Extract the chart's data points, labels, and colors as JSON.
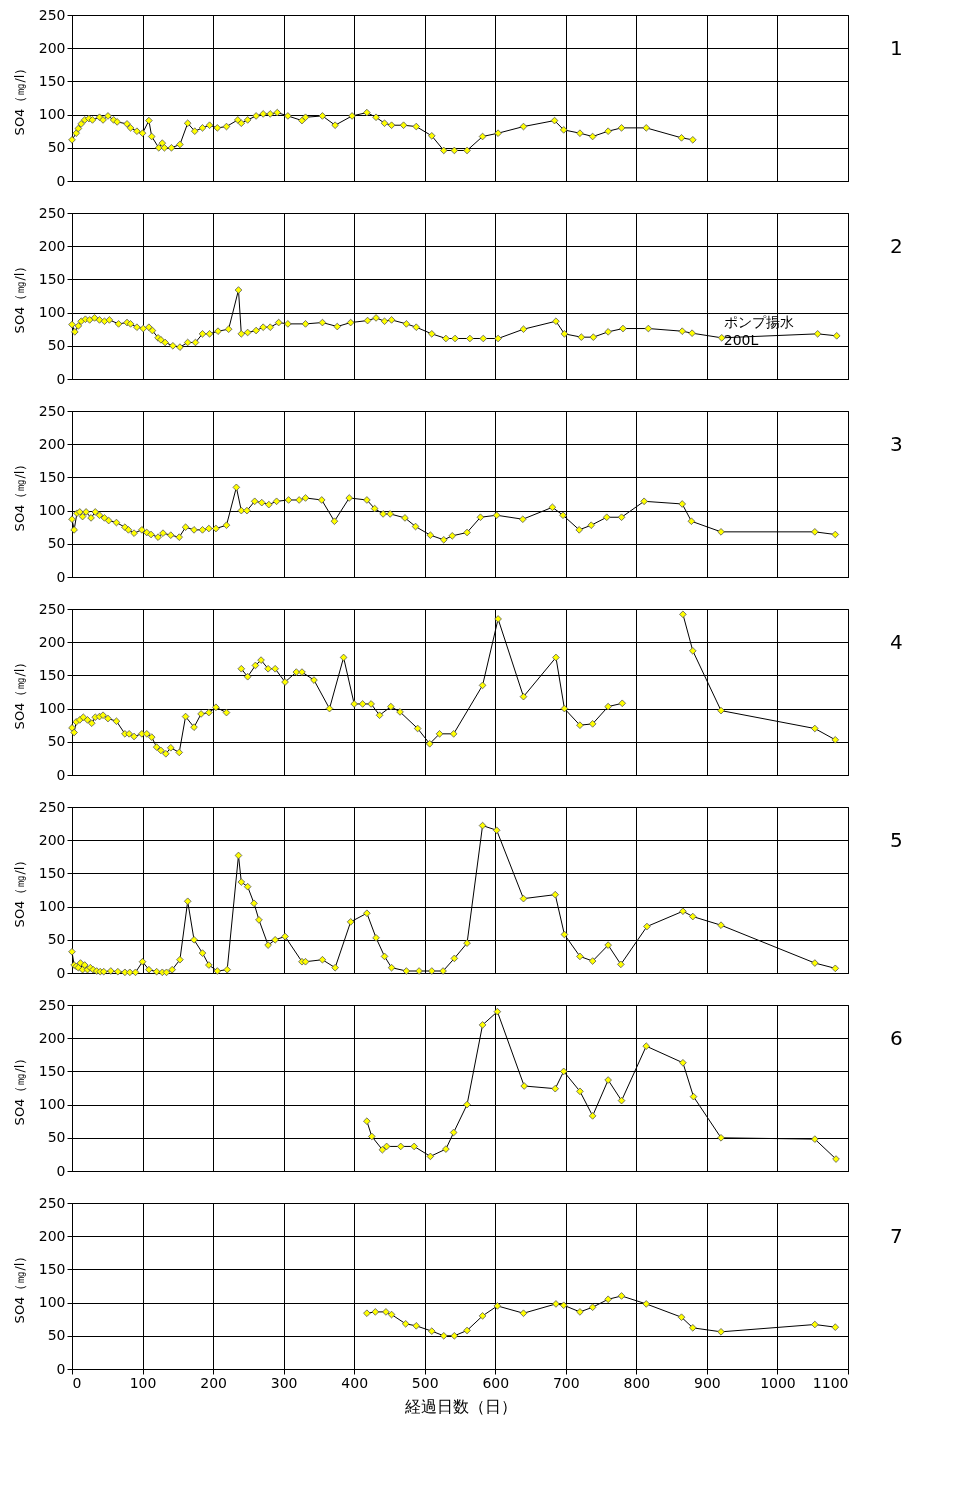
{
  "chart_data": [
    {
      "type": "line",
      "annotations": [
        "1"
      ],
      "ylabel": "SO4（㎎/l）",
      "xlim": [
        0,
        1100
      ],
      "xticks": [
        0,
        100,
        200,
        300,
        400,
        500,
        600,
        700,
        800,
        900,
        1000,
        1100
      ],
      "ylim": [
        0,
        250
      ],
      "yticks": [
        0,
        50,
        100,
        150,
        200,
        250
      ],
      "grid": true,
      "legend": false,
      "marker": "diamond",
      "line_style": "solid",
      "tick_labels": "y",
      "x": [
        0,
        6,
        9,
        13,
        18,
        24,
        29,
        39,
        44,
        51,
        59,
        64,
        78,
        83,
        92,
        100,
        109,
        113,
        123,
        128,
        131,
        141,
        153,
        164,
        174,
        185,
        195,
        206,
        219,
        235,
        240,
        249,
        261,
        271,
        281,
        291,
        306,
        326,
        331,
        355,
        373,
        397,
        418,
        431,
        443,
        453,
        470,
        488,
        510,
        527,
        542,
        560,
        582,
        604,
        640,
        684,
        697,
        720,
        738,
        760,
        779,
        814,
        864,
        880
      ],
      "series": [
        {
          "color": "#ffff00",
          "values": [
            62,
            72,
            79,
            86,
            92,
            94,
            92,
            96,
            92,
            98,
            92,
            89,
            86,
            80,
            75,
            72,
            91,
            67,
            50,
            57,
            50,
            50,
            55,
            87,
            75,
            80,
            84,
            80,
            82,
            92,
            87,
            92,
            98,
            101,
            101,
            103,
            98,
            91,
            96,
            98,
            84,
            98,
            103,
            96,
            87,
            84,
            84,
            82,
            68,
            46,
            46,
            46,
            67,
            72,
            82,
            91,
            77,
            72,
            67,
            75,
            80,
            80,
            65,
            62
          ]
        }
      ]
    },
    {
      "type": "line",
      "ylabel": "SO4（㎎/l）",
      "xlim": [
        0,
        1100
      ],
      "xticks": [
        0,
        100,
        200,
        300,
        400,
        500,
        600,
        700,
        800,
        900,
        1000,
        1100
      ],
      "ylim": [
        0,
        250
      ],
      "yticks": [
        0,
        50,
        100,
        150,
        200,
        250
      ],
      "grid": true,
      "legend": false,
      "marker": "diamond",
      "line_style": "solid",
      "tick_labels": "y",
      "annotations": [
        "2",
        {
          "text": "ポンプ揚水\n200L",
          "x": 921,
          "y": 62
        }
      ],
      "x": [
        0,
        4,
        9,
        13,
        19,
        25,
        32,
        39,
        46,
        53,
        66,
        78,
        83,
        92,
        101,
        109,
        114,
        122,
        126,
        132,
        143,
        153,
        164,
        175,
        185,
        195,
        207,
        222,
        236,
        240,
        249,
        261,
        271,
        281,
        293,
        306,
        331,
        355,
        376,
        395,
        419,
        431,
        443,
        453,
        474,
        488,
        510,
        530,
        543,
        564,
        583,
        604,
        640,
        686,
        698,
        722,
        739,
        760,
        781,
        817,
        865,
        879,
        921,
        1057,
        1084
      ],
      "series": [
        {
          "color": "#ffff00",
          "values": [
            82,
            71,
            80,
            87,
            90,
            89,
            92,
            89,
            87,
            89,
            83,
            85,
            83,
            78,
            76,
            78,
            73,
            62,
            59,
            55,
            50,
            48,
            55,
            55,
            68,
            68,
            72,
            75,
            134,
            68,
            70,
            73,
            78,
            78,
            85,
            83,
            83,
            85,
            79,
            85,
            88,
            92,
            87,
            89,
            83,
            78,
            68,
            61,
            61,
            61,
            61,
            61,
            75,
            87,
            68,
            63,
            63,
            71,
            76,
            76,
            72,
            69,
            62,
            68,
            65
          ]
        }
      ]
    },
    {
      "type": "line",
      "annotations": [
        "3"
      ],
      "ylabel": "SO4（㎎/l）",
      "xlim": [
        0,
        1100
      ],
      "xticks": [
        0,
        100,
        200,
        300,
        400,
        500,
        600,
        700,
        800,
        900,
        1000,
        1100
      ],
      "ylim": [
        0,
        250
      ],
      "yticks": [
        0,
        50,
        100,
        150,
        200,
        250
      ],
      "grid": true,
      "legend": false,
      "marker": "diamond",
      "line_style": "solid",
      "tick_labels": "y",
      "x": [
        0,
        3,
        7,
        11,
        15,
        20,
        27,
        33,
        39,
        46,
        52,
        63,
        75,
        80,
        88,
        99,
        106,
        112,
        122,
        129,
        140,
        152,
        161,
        173,
        185,
        194,
        204,
        219,
        233,
        240,
        248,
        259,
        269,
        279,
        290,
        307,
        322,
        331,
        354,
        372,
        393,
        418,
        429,
        441,
        451,
        472,
        487,
        508,
        527,
        539,
        560,
        579,
        602,
        639,
        681,
        696,
        719,
        736,
        758,
        779,
        811,
        865,
        878,
        920,
        1053,
        1082
      ],
      "series": [
        {
          "color": "#ffff00",
          "values": [
            87,
            71,
            96,
            98,
            91,
            98,
            89,
            98,
            93,
            89,
            85,
            82,
            75,
            71,
            66,
            71,
            67,
            64,
            60,
            66,
            63,
            60,
            75,
            71,
            71,
            73,
            73,
            78,
            135,
            100,
            100,
            114,
            112,
            109,
            114,
            116,
            116,
            119,
            116,
            84,
            119,
            116,
            103,
            95,
            95,
            89,
            76,
            63,
            56,
            62,
            67,
            90,
            93,
            87,
            105,
            93,
            71,
            78,
            90,
            90,
            114,
            110,
            84,
            68,
            68,
            64
          ]
        }
      ]
    },
    {
      "type": "line",
      "annotations": [
        "4"
      ],
      "ylabel": "SO4（㎎/l）",
      "xlim": [
        0,
        1100
      ],
      "xticks": [
        0,
        100,
        200,
        300,
        400,
        500,
        600,
        700,
        800,
        900,
        1000,
        1100
      ],
      "ylim": [
        0,
        250
      ],
      "yticks": [
        0,
        50,
        100,
        150,
        200,
        250
      ],
      "grid": true,
      "legend": false,
      "marker": "diamond",
      "line_style": "solid",
      "tick_labels": "y",
      "x": [
        0,
        3,
        6,
        11,
        16,
        22,
        28,
        33,
        39,
        44,
        51,
        63,
        75,
        81,
        88,
        99,
        106,
        113,
        120,
        126,
        133,
        140,
        152,
        161,
        173,
        183,
        194,
        204,
        219,
        234,
        240,
        249,
        260,
        268,
        278,
        288,
        302,
        318,
        326,
        343,
        365,
        385,
        400,
        412,
        424,
        436,
        452,
        465,
        490,
        507,
        521,
        541,
        582,
        604,
        640,
        686,
        698,
        720,
        738,
        760,
        780,
        815,
        866,
        880,
        920,
        1053,
        1082
      ],
      "series": [
        {
          "color": "#ffff00",
          "values": [
            71,
            64,
            80,
            83,
            87,
            83,
            78,
            87,
            88,
            90,
            85,
            81,
            62,
            62,
            58,
            62,
            62,
            57,
            42,
            37,
            32,
            41,
            34,
            88,
            72,
            92,
            94,
            102,
            94,
            null,
            160,
            148,
            165,
            173,
            160,
            160,
            140,
            155,
            155,
            143,
            100,
            177,
            107,
            107,
            107,
            90,
            103,
            95,
            70,
            47,
            62,
            62,
            135,
            235,
            118,
            177,
            100,
            75,
            77,
            103,
            108,
            null,
            242,
            187,
            97,
            70,
            53
          ]
        }
      ]
    },
    {
      "type": "line",
      "annotations": [
        "5"
      ],
      "ylabel": "SO4（㎎/l）",
      "xlim": [
        0,
        1100
      ],
      "xticks": [
        0,
        100,
        200,
        300,
        400,
        500,
        600,
        700,
        800,
        900,
        1000,
        1100
      ],
      "ylim": [
        0,
        250
      ],
      "yticks": [
        0,
        50,
        100,
        150,
        200,
        250
      ],
      "grid": true,
      "legend": false,
      "marker": "diamond",
      "line_style": "solid",
      "tick_labels": "y",
      "x": [
        0,
        3,
        6,
        9,
        12,
        15,
        18,
        22,
        26,
        30,
        35,
        40,
        45,
        55,
        65,
        75,
        82,
        90,
        100,
        109,
        120,
        128,
        134,
        142,
        153,
        164,
        173,
        185,
        194,
        206,
        220,
        236,
        240,
        249,
        258,
        265,
        278,
        288,
        302,
        326,
        331,
        355,
        373,
        395,
        418,
        431,
        443,
        453,
        474,
        492,
        510,
        526,
        542,
        560,
        582,
        602,
        640,
        685,
        698,
        720,
        738,
        760,
        778,
        815,
        866,
        880,
        920,
        1053,
        1082
      ],
      "series": [
        {
          "color": "#ffff00",
          "values": [
            32,
            12,
            10,
            8,
            15,
            5,
            12,
            5,
            8,
            5,
            3,
            2,
            2,
            3,
            2,
            1,
            1,
            1,
            17,
            5,
            2,
            1,
            1,
            5,
            20,
            108,
            50,
            30,
            12,
            3,
            5,
            177,
            137,
            130,
            105,
            80,
            42,
            50,
            55,
            17,
            17,
            20,
            8,
            77,
            90,
            53,
            25,
            8,
            3,
            3,
            3,
            3,
            22,
            45,
            222,
            215,
            112,
            118,
            58,
            25,
            18,
            42,
            13,
            70,
            93,
            85,
            72,
            15,
            7
          ]
        }
      ]
    },
    {
      "type": "line",
      "annotations": [
        "6"
      ],
      "ylabel": "SO4（㎎/l）",
      "xlim": [
        0,
        1100
      ],
      "xticks": [
        0,
        100,
        200,
        300,
        400,
        500,
        600,
        700,
        800,
        900,
        1000,
        1100
      ],
      "ylim": [
        0,
        250
      ],
      "yticks": [
        0,
        50,
        100,
        150,
        200,
        250
      ],
      "grid": true,
      "legend": false,
      "marker": "diamond",
      "line_style": "solid",
      "tick_labels": "y",
      "x": [
        418,
        425,
        440,
        446,
        466,
        485,
        508,
        530,
        541,
        560,
        582,
        603,
        641,
        685,
        697,
        720,
        738,
        760,
        779,
        814,
        866,
        881,
        920,
        1053,
        1083
      ],
      "series": [
        {
          "color": "#ffff00",
          "values": [
            75,
            52,
            32,
            37,
            37,
            37,
            22,
            33,
            58,
            100,
            220,
            240,
            128,
            124,
            150,
            120,
            83,
            137,
            106,
            188,
            163,
            112,
            50,
            48,
            18
          ]
        }
      ]
    },
    {
      "type": "line",
      "annotations": [
        "7"
      ],
      "ylabel": "SO4（㎎/l）",
      "xlabel": "経過日数（日）",
      "xlim": [
        0,
        1100
      ],
      "xticks": [
        0,
        100,
        200,
        300,
        400,
        500,
        600,
        700,
        800,
        900,
        {
          "value": 1000,
          "label": "1000"
        },
        {
          "value": 1100,
          "label": "1100"
        }
      ],
      "ylim": [
        0,
        250
      ],
      "yticks": [
        0,
        50,
        100,
        150,
        200,
        250
      ],
      "grid": true,
      "legend": false,
      "marker": "diamond",
      "line_style": "solid",
      "x": [
        418,
        430,
        445,
        453,
        473,
        488,
        510,
        527,
        542,
        560,
        582,
        603,
        640,
        686,
        697,
        720,
        738,
        760,
        779,
        814,
        864,
        880,
        920,
        1053,
        1082
      ],
      "series": [
        {
          "color": "#ffff00",
          "values": [
            84,
            86,
            86,
            82,
            68,
            65,
            57,
            50,
            50,
            58,
            80,
            95,
            84,
            98,
            96,
            86,
            93,
            105,
            110,
            98,
            78,
            62,
            56,
            67,
            63
          ]
        }
      ]
    }
  ]
}
